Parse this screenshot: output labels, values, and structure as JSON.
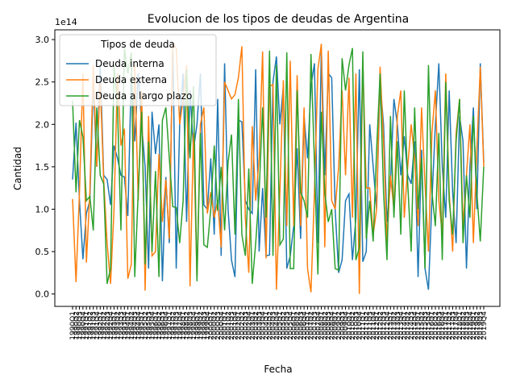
{
  "chart_data": {
    "type": "line",
    "title": "Evolucion de los tipos de deudas de Argentina",
    "xlabel": "Fecha",
    "ylabel": "Cantidad",
    "offset_text": "1e14",
    "legend_title": "Tipos de deuda",
    "legend": "upper left",
    "categories": [
      "1990Q1",
      "1990Q2",
      "1990Q3",
      "1990Q4",
      "1991Q1",
      "1991Q2",
      "1991Q3",
      "1991Q4",
      "1992Q1",
      "1992Q2",
      "1992Q3",
      "1992Q4",
      "1993Q1",
      "1993Q2",
      "1993Q3",
      "1993Q4",
      "1994Q1",
      "1994Q2",
      "1994Q3",
      "1994Q4",
      "1995Q1",
      "1995Q2",
      "1995Q3",
      "1995Q4",
      "1996Q1",
      "1996Q2",
      "1996Q3",
      "1996Q4",
      "1997Q1",
      "1997Q2",
      "1997Q3",
      "1997Q4",
      "1998Q1",
      "1998Q2",
      "1998Q3",
      "1998Q4",
      "1999Q1",
      "1999Q2",
      "1999Q3",
      "1999Q4",
      "2000Q1",
      "2000Q2",
      "2000Q3",
      "2000Q4",
      "2001Q1",
      "2001Q2",
      "2001Q3",
      "2001Q4",
      "2002Q1",
      "2002Q2",
      "2002Q3",
      "2002Q4",
      "2003Q1",
      "2003Q2",
      "2003Q3",
      "2003Q4",
      "2004Q1",
      "2004Q2",
      "2004Q3",
      "2004Q4",
      "2005Q1",
      "2005Q2",
      "2005Q3",
      "2005Q4",
      "2006Q1",
      "2006Q2",
      "2006Q3",
      "2006Q4",
      "2007Q1",
      "2007Q2",
      "2007Q3",
      "2007Q4",
      "2008Q1",
      "2008Q2",
      "2008Q3",
      "2008Q4",
      "2009Q1",
      "2009Q2",
      "2009Q3",
      "2009Q4",
      "2010Q1",
      "2010Q2",
      "2010Q3",
      "2010Q4",
      "2011Q1",
      "2011Q2",
      "2011Q3",
      "2011Q4",
      "2012Q1",
      "2012Q2",
      "2012Q3",
      "2012Q4",
      "2013Q1",
      "2013Q2",
      "2013Q3",
      "2013Q4",
      "2014Q1",
      "2014Q2",
      "2014Q3",
      "2014Q4",
      "2015Q1",
      "2015Q2",
      "2015Q3",
      "2015Q4",
      "2016Q1",
      "2016Q2",
      "2016Q3",
      "2016Q4",
      "2017Q1",
      "2017Q2",
      "2017Q3",
      "2017Q4",
      "2018Q1",
      "2018Q2",
      "2018Q3",
      "2018Q4",
      "2019Q1",
      "2019Q2",
      "2019Q3",
      "2019Q4"
    ],
    "series": [
      {
        "name": "Deuda interna",
        "color": "#1f77b4",
        "values": [
          1.35,
          2.02,
          1.1,
          0.41,
          0.95,
          1.1,
          2.5,
          1.5,
          2.7,
          1.4,
          1.35,
          1.05,
          1.75,
          1.6,
          1.4,
          1.38,
          0.92,
          2.6,
          1.8,
          2.6,
          2.0,
          1.5,
          0.3,
          2.15,
          1.65,
          2.0,
          0.15,
          1.38,
          0.6,
          2.96,
          0.3,
          2.0,
          2.6,
          0.85,
          2.4,
          1.7,
          2.0,
          2.6,
          1.05,
          1.0,
          1.6,
          0.7,
          2.3,
          0.45,
          2.72,
          1.0,
          0.4,
          0.2,
          2.05,
          2.03,
          1.1,
          1.0,
          0.95,
          2.65,
          0.5,
          1.25,
          0.45,
          0.46,
          2.5,
          2.8,
          2.0,
          2.45,
          0.3,
          0.45,
          0.8,
          1.72,
          0.65,
          2.1,
          1.6,
          2.45,
          2.72,
          0.6,
          2.9,
          1.4,
          2.6,
          2.55,
          1.0,
          0.25,
          0.4,
          1.1,
          1.18,
          0.4,
          0.9,
          2.65,
          0.38,
          0.5,
          2.0,
          1.5,
          1.0,
          2.5,
          2.0,
          0.85,
          1.3,
          2.3,
          2.0,
          1.4,
          1.86,
          1.4,
          1.3,
          1.8,
          0.2,
          1.7,
          0.3,
          0.05,
          1.1,
          2.0,
          2.72,
          1.5,
          0.9,
          2.4,
          1.2,
          0.6,
          2.1,
          1.8,
          0.3,
          1.5,
          2.2,
          1.0,
          2.72,
          1.55
        ]
      },
      {
        "name": "Deuda externa",
        "color": "#ff7f0e",
        "values": [
          1.12,
          0.14,
          1.2,
          2.6,
          0.37,
          1.2,
          2.7,
          1.5,
          2.5,
          1.35,
          0.6,
          0.12,
          1.0,
          2.6,
          1.75,
          1.95,
          0.18,
          0.35,
          2.7,
          1.1,
          2.4,
          0.04,
          2.1,
          0.45,
          0.5,
          1.65,
          0.85,
          1.35,
          0.65,
          2.95,
          2.9,
          2.0,
          2.3,
          2.7,
          0.09,
          1.9,
          0.18,
          2.0,
          2.2,
          0.95,
          1.2,
          0.9,
          1.1,
          0.55,
          2.5,
          2.4,
          2.3,
          2.35,
          2.55,
          2.92,
          0.9,
          0.25,
          1.98,
          1.1,
          1.6,
          2.86,
          0.42,
          2.45,
          2.47,
          0.05,
          1.2,
          2.52,
          0.8,
          2.75,
          0.8,
          2.58,
          0.8,
          2.2,
          0.3,
          0.02,
          1.2,
          2.65,
          2.95,
          0.55,
          2.87,
          1.1,
          1.0,
          1.5,
          2.4,
          1.4,
          2.55,
          0.9,
          2.6,
          0.0,
          2.75,
          1.25,
          1.25,
          0.7,
          1.0,
          2.68,
          1.8,
          0.6,
          1.4,
          1.0,
          2.1,
          2.4,
          0.9,
          1.5,
          2.0,
          1.6,
          0.8,
          2.2,
          1.3,
          0.5,
          1.9,
          2.4,
          1.1,
          0.7,
          2.6,
          1.2,
          0.5,
          1.9,
          2.3,
          0.8,
          1.4,
          2.0,
          0.6,
          1.7,
          2.68,
          1.5
        ]
      },
      {
        "name": "Deuda a largo plazo",
        "color": "#2ca02c",
        "values": [
          2.28,
          1.2,
          2.05,
          1.85,
          1.1,
          1.15,
          0.75,
          2.2,
          1.4,
          1.3,
          0.12,
          0.3,
          2.7,
          2.2,
          0.75,
          2.9,
          2.6,
          2.85,
          0.2,
          1.2,
          2.15,
          0.35,
          1.8,
          0.5,
          1.45,
          0.2,
          2.05,
          2.2,
          1.6,
          1.03,
          1.02,
          0.6,
          1.1,
          2.65,
          1.6,
          2.45,
          0.15,
          1.9,
          0.58,
          0.55,
          1.0,
          1.75,
          0.98,
          1.5,
          0.75,
          1.55,
          1.88,
          0.7,
          2.3,
          0.7,
          0.45,
          1.48,
          0.12,
          0.6,
          1.2,
          2.2,
          0.9,
          2.87,
          0.45,
          2.7,
          0.58,
          0.65,
          2.85,
          0.3,
          0.3,
          2.4,
          1.2,
          1.1,
          0.9,
          2.83,
          1.55,
          0.23,
          2.15,
          1.2,
          0.85,
          1.0,
          0.3,
          0.28,
          2.78,
          2.4,
          2.7,
          2.9,
          0.4,
          0.55,
          2.86,
          0.65,
          1.1,
          0.62,
          1.7,
          2.6,
          1.2,
          0.4,
          2.1,
          0.9,
          1.8,
          0.7,
          2.4,
          1.3,
          0.5,
          2.2,
          1.0,
          1.6,
          0.3,
          2.7,
          1.2,
          0.8,
          1.9,
          0.4,
          2.5,
          1.1,
          0.7,
          1.8,
          2.3,
          0.6,
          1.4,
          0.9,
          2.1,
          1.2,
          0.62,
          1.5
        ]
      }
    ],
    "ylim": [
      -0.146,
      3.115
    ],
    "yticks": [
      {
        "value": 0,
        "label": "0.0"
      },
      {
        "value": 0.5,
        "label": "0.5"
      },
      {
        "value": 1,
        "label": "1.0"
      },
      {
        "value": 1.5,
        "label": "1.5"
      },
      {
        "value": 2,
        "label": "2.0"
      },
      {
        "value": 2.5,
        "label": "2.5"
      },
      {
        "value": 3,
        "label": "3.0"
      }
    ]
  }
}
